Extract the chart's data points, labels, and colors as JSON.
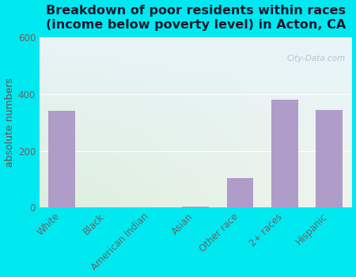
{
  "title": "Breakdown of poor residents within races\n(income below poverty level) in Acton, CA",
  "categories": [
    "White",
    "Black",
    "American Indian",
    "Asian",
    "Other race",
    "2+ races",
    "Hispanic"
  ],
  "values": [
    340,
    0,
    0,
    2,
    105,
    380,
    345
  ],
  "bar_color": "#b09cc8",
  "ylabel": "absolute numbers",
  "ylim": [
    0,
    600
  ],
  "yticks": [
    0,
    200,
    400,
    600
  ],
  "bg_outer": "#00e8f0",
  "bg_plot_top_left": "#e8f4f8",
  "bg_plot_bottom_left": "#ddeedd",
  "bg_plot_top_right": "#f8f8f8",
  "bg_plot_bottom_right": "#eef5ee",
  "title_fontsize": 11.5,
  "axis_label_fontsize": 9,
  "tick_fontsize": 8.5,
  "watermark": "City-Data.com"
}
